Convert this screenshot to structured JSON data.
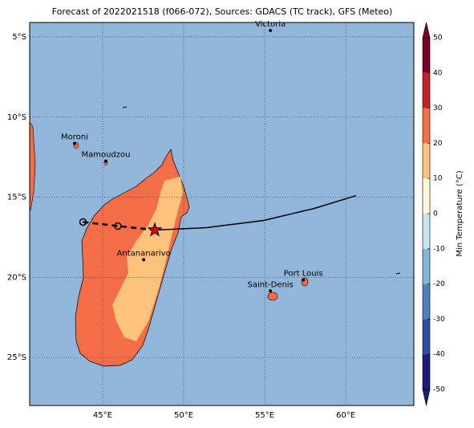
{
  "map": {
    "title": "Forecast of 2022021518 (f066-072), Sources: GDACS (TC track), GFS (Meteo)",
    "xlim": [
      40.5,
      64.2
    ],
    "ylim": [
      -28,
      -4.1
    ],
    "xticks": [
      {
        "value": 45,
        "label": "45°E"
      },
      {
        "value": 50,
        "label": "50°E"
      },
      {
        "value": 55,
        "label": "55°E"
      },
      {
        "value": 60,
        "label": "60°E"
      }
    ],
    "yticks": [
      {
        "value": -5,
        "label": "5°S"
      },
      {
        "value": -10,
        "label": "10°S"
      },
      {
        "value": -15,
        "label": "15°S"
      },
      {
        "value": -20,
        "label": "20°S"
      },
      {
        "value": -25,
        "label": "25°S"
      }
    ],
    "ocean_color": "#92b5da",
    "cities": [
      {
        "name": "Victoria",
        "lon": 55.35,
        "lat": -4.6
      },
      {
        "name": "Moroni",
        "lon": 43.27,
        "lat": -11.65
      },
      {
        "name": "Mamoudzou",
        "lon": 45.2,
        "lat": -12.75
      },
      {
        "name": "Antananarivo",
        "lon": 47.53,
        "lat": -18.9
      },
      {
        "name": "Port Louis",
        "lon": 57.38,
        "lat": -20.16
      },
      {
        "name": "Saint-Denis",
        "lon": 55.35,
        "lat": -20.85
      }
    ],
    "track": {
      "past": {
        "lon": [
          43.79,
          45.94,
          48.22
        ],
        "lat": [
          -16.55,
          -16.8,
          -17.05
        ]
      },
      "forecast": {
        "lon": [
          51.4,
          54.95,
          58.07,
          60.64
        ],
        "lat": [
          -16.9,
          -16.45,
          -15.7,
          -14.9
        ]
      }
    },
    "colorbar": {
      "label": "Min Temperature (°C)",
      "lim": [
        -50,
        50
      ],
      "ticks": [
        50,
        40,
        30,
        20,
        10,
        0,
        -10,
        -20,
        -30,
        -40,
        -50
      ],
      "colors": [
        "#1c1c78",
        "#2d4da0",
        "#4b82bc",
        "#82b4d8",
        "#c6e4f0",
        "#fdf8da",
        "#fdc27c",
        "#f36e47",
        "#c81f2b",
        "#7c0025"
      ]
    }
  }
}
